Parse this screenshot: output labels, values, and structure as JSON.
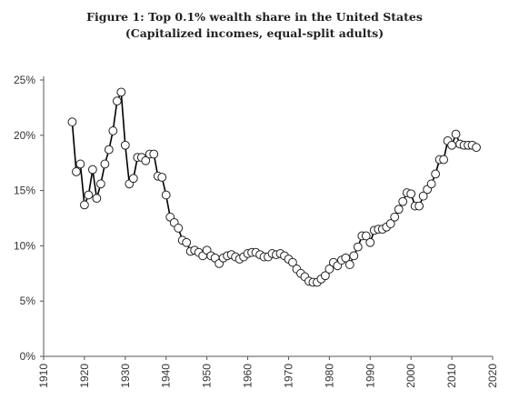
{
  "chart_data": {
    "type": "line",
    "title": "Figure 1: Top 0.1% wealth share in the United States",
    "subtitle": "(Capitalized incomes, equal-split adults)",
    "xlabel": "",
    "ylabel": "",
    "xlim": [
      1910,
      2020
    ],
    "ylim": [
      0,
      25
    ],
    "x_ticks": [
      "1910",
      "1920",
      "1930",
      "1940",
      "1950",
      "1960",
      "1970",
      "1980",
      "1990",
      "2000",
      "2010",
      "2020"
    ],
    "y_ticks": [
      "0%",
      "5%",
      "10%",
      "15%",
      "20%",
      "25%"
    ],
    "grid": false,
    "legend": "none",
    "marker": "open-circle",
    "line_color": "#000000",
    "series": [
      {
        "x": [
          1917,
          1918,
          1919,
          1920,
          1921,
          1922,
          1923,
          1924,
          1925,
          1926,
          1927,
          1928,
          1929,
          1930,
          1931,
          1932,
          1933,
          1934,
          1935,
          1936,
          1937,
          1938,
          1939,
          1940,
          1941,
          1942,
          1943,
          1944,
          1945,
          1946,
          1947,
          1948,
          1949,
          1950,
          1951,
          1952,
          1953,
          1954,
          1955,
          1956,
          1957,
          1958,
          1959,
          1960,
          1961,
          1962,
          1963,
          1964,
          1965,
          1966,
          1967,
          1968,
          1969,
          1970,
          1971,
          1972,
          1973,
          1974,
          1975,
          1976,
          1977,
          1978,
          1979,
          1980,
          1981,
          1982,
          1983,
          1984,
          1985,
          1986,
          1987,
          1988,
          1989,
          1990,
          1991,
          1992,
          1993,
          1994,
          1995,
          1996,
          1997,
          1998,
          1999,
          2000,
          2001,
          2002,
          2003,
          2004,
          2005,
          2006,
          2007,
          2008,
          2009,
          2010,
          2011,
          2012,
          2013,
          2014,
          2015,
          2016
        ],
        "y": [
          21.2,
          16.7,
          17.4,
          13.7,
          14.6,
          16.9,
          14.3,
          15.6,
          17.4,
          18.7,
          20.4,
          23.1,
          23.9,
          19.1,
          15.6,
          16.1,
          18.0,
          18.0,
          17.7,
          18.3,
          18.3,
          16.3,
          16.2,
          14.6,
          12.6,
          12.1,
          11.6,
          10.5,
          10.3,
          9.5,
          9.6,
          9.4,
          9.1,
          9.6,
          9.1,
          8.9,
          8.4,
          8.9,
          9.1,
          9.2,
          9.0,
          8.8,
          9.0,
          9.3,
          9.4,
          9.4,
          9.2,
          9.0,
          9.0,
          9.3,
          9.2,
          9.3,
          9.1,
          8.8,
          8.5,
          7.9,
          7.5,
          7.2,
          6.8,
          6.7,
          6.7,
          7.0,
          7.3,
          7.9,
          8.5,
          8.2,
          8.7,
          8.9,
          8.3,
          9.1,
          9.9,
          10.9,
          10.9,
          10.3,
          11.4,
          11.5,
          11.5,
          11.7,
          12.0,
          12.6,
          13.3,
          14.0,
          14.8,
          14.7,
          13.6,
          13.6,
          14.5,
          15.1,
          15.6,
          16.5,
          17.8,
          17.8,
          19.5,
          19.1,
          20.1,
          19.2,
          19.1,
          19.1,
          19.1,
          18.9
        ]
      }
    ]
  }
}
